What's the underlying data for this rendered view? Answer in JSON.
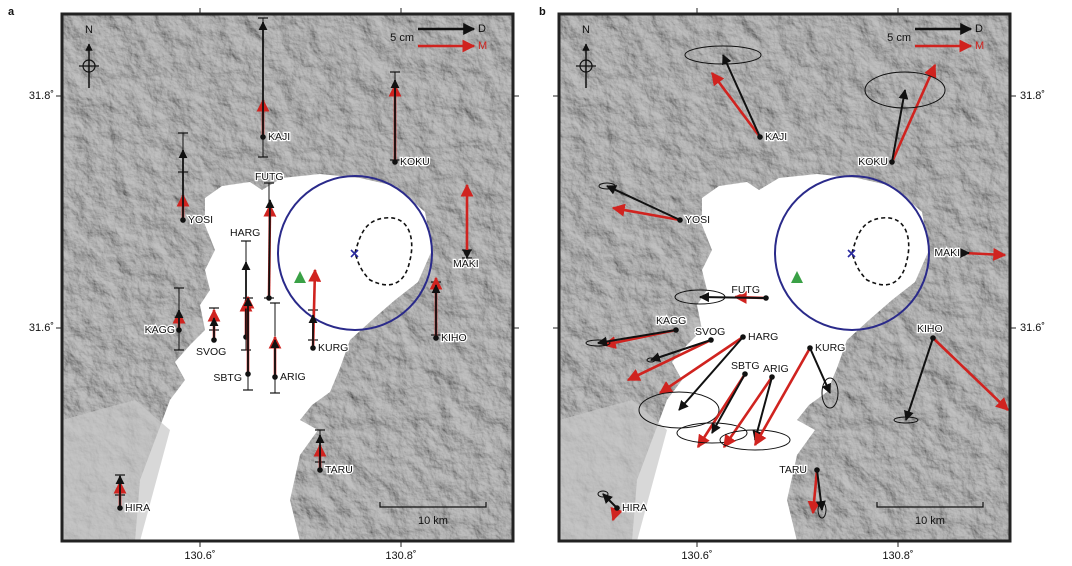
{
  "panels": [
    {
      "label": "a",
      "north": "N",
      "legend": {
        "scale": "5 cm",
        "observed": "D",
        "model": "M"
      },
      "scale_bar": "10 km",
      "lon_ticks": [
        "130.6˚",
        "130.8˚"
      ],
      "lat_ticks": [
        "31.8˚",
        "31.6˚"
      ],
      "stations": [
        "KAJI",
        "KOKU",
        "YOSI",
        "MAKI",
        "FUTG",
        "HARG",
        "KAGG",
        "SVOG",
        "SBTG",
        "ARIG",
        "KURG",
        "KIHO",
        "TARU",
        "HIRA"
      ]
    },
    {
      "label": "b",
      "north": "N",
      "legend": {
        "scale": "5 cm",
        "observed": "D",
        "model": "M"
      },
      "scale_bar": "10 km",
      "lon_ticks": [
        "130.6˚",
        "130.8˚"
      ],
      "lat_ticks": [
        "31.8˚",
        "31.6˚"
      ],
      "stations": [
        "KAJI",
        "KOKU",
        "YOSI",
        "MAKI",
        "FUTG",
        "HARG",
        "KAGG",
        "SVOG",
        "SBTG",
        "ARIG",
        "KURG",
        "KIHO",
        "TARU",
        "HIRA"
      ]
    }
  ]
}
